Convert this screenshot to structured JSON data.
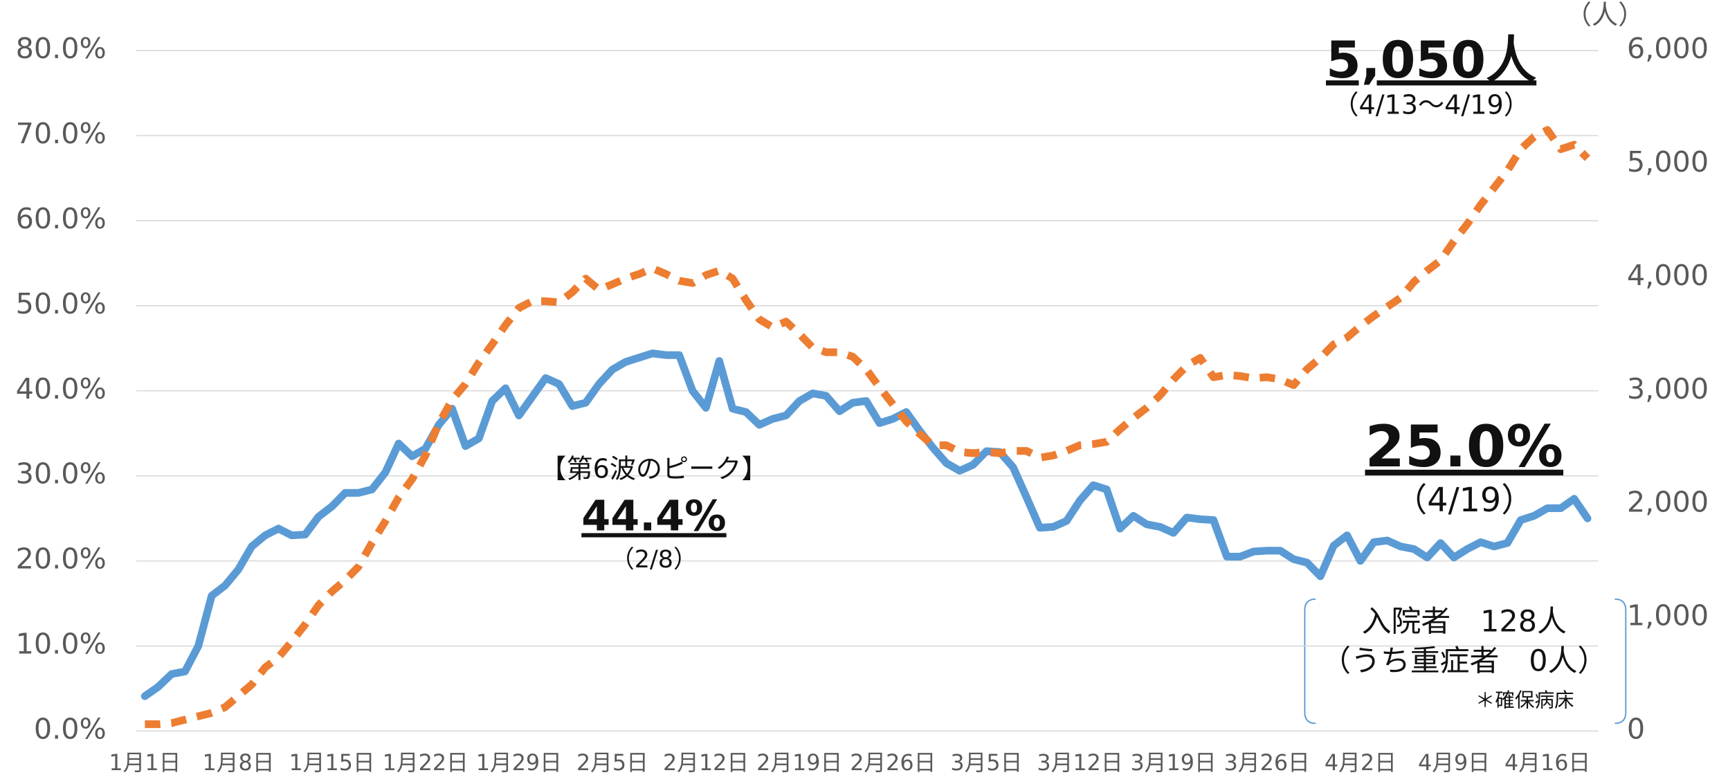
{
  "chart_data": {
    "type": "line",
    "categories": [
      "1月1日",
      null,
      null,
      null,
      null,
      null,
      null,
      "1月8日",
      null,
      null,
      null,
      null,
      null,
      null,
      "1月15日",
      null,
      null,
      null,
      null,
      null,
      null,
      "1月22日",
      null,
      null,
      null,
      null,
      null,
      null,
      "1月29日",
      null,
      null,
      null,
      null,
      null,
      null,
      "2月5日",
      null,
      null,
      null,
      null,
      null,
      null,
      "2月12日",
      null,
      null,
      null,
      null,
      null,
      null,
      "2月19日",
      null,
      null,
      null,
      null,
      null,
      null,
      "2月26日",
      null,
      null,
      null,
      null,
      null,
      null,
      "3月5日",
      null,
      null,
      null,
      null,
      null,
      null,
      "3月12日",
      null,
      null,
      null,
      null,
      null,
      null,
      "3月19日",
      null,
      null,
      null,
      null,
      null,
      null,
      "3月26日",
      null,
      null,
      null,
      null,
      null,
      null,
      "4月2日",
      null,
      null,
      null,
      null,
      null,
      null,
      "4月9日",
      null,
      null,
      null,
      null,
      null,
      null,
      "4月16日",
      null,
      null,
      null
    ],
    "series": [
      {
        "color": "#5B9BD5",
        "values": [
          4.1,
          5.2,
          6.7,
          7.0,
          10.0,
          15.9,
          17.1,
          19.0,
          21.7,
          23.0,
          23.8,
          23.0,
          23.1,
          25.2,
          26.4,
          28.0,
          28.0,
          28.4,
          30.4,
          33.8,
          32.3,
          33.2,
          36.0,
          37.9,
          33.5,
          34.4,
          38.8,
          40.3,
          37.1,
          39.3,
          41.5,
          40.8,
          38.2,
          38.6,
          40.8,
          42.5,
          43.4,
          43.9,
          44.4,
          44.2,
          44.2,
          40.0,
          38.0,
          43.5,
          37.9,
          37.5,
          36.0,
          36.7,
          37.1,
          38.8,
          39.7,
          39.4,
          37.6,
          38.6,
          38.8,
          36.2,
          36.7,
          37.5,
          35.3,
          33.3,
          31.5,
          30.6,
          31.3,
          32.9,
          32.8,
          31.0,
          27.5,
          23.9,
          24.0,
          24.7,
          27.1,
          28.9,
          28.4,
          23.8,
          25.3,
          24.3,
          24.0,
          23.3,
          25.1,
          24.9,
          24.8,
          20.5,
          20.5,
          21.1,
          21.2,
          21.2,
          20.2,
          19.8,
          18.2,
          21.8,
          23.0,
          20.0,
          22.2,
          22.4,
          21.7,
          21.4,
          20.4,
          22.1,
          20.4,
          21.4,
          22.2,
          21.7,
          22.1,
          24.8,
          25.3,
          26.2,
          26.2,
          27.3,
          25.0
        ]
      },
      {
        "color": "#ED7D31",
        "axis": "y2",
        "dashed": true,
        "values": [
          60,
          60,
          70,
          100,
          130,
          160,
          210,
          310,
          410,
          560,
          650,
          790,
          940,
          1110,
          1230,
          1330,
          1450,
          1660,
          1850,
          2060,
          2220,
          2430,
          2710,
          2920,
          3060,
          3250,
          3410,
          3580,
          3730,
          3790,
          3790,
          3780,
          3870,
          3990,
          3890,
          3940,
          3990,
          4030,
          4080,
          4030,
          3970,
          3950,
          4020,
          4060,
          3990,
          3800,
          3630,
          3560,
          3610,
          3500,
          3380,
          3340,
          3340,
          3300,
          3190,
          3030,
          2880,
          2730,
          2620,
          2520,
          2520,
          2460,
          2450,
          2460,
          2450,
          2470,
          2470,
          2410,
          2430,
          2470,
          2520,
          2530,
          2550,
          2660,
          2760,
          2850,
          2960,
          3100,
          3220,
          3290,
          3120,
          3140,
          3130,
          3110,
          3120,
          3100,
          3050,
          3190,
          3290,
          3410,
          3470,
          3570,
          3660,
          3740,
          3820,
          3960,
          4060,
          4150,
          4320,
          4470,
          4640,
          4790,
          4940,
          5130,
          5240,
          5300,
          5130,
          5170,
          5050
        ]
      }
    ],
    "ylim": [
      0,
      80
    ],
    "yticks": [
      {
        "value": 0,
        "label": "0.0%"
      },
      {
        "value": 10,
        "label": "10.0%"
      },
      {
        "value": 20,
        "label": "20.0%"
      },
      {
        "value": 30,
        "label": "30.0%"
      },
      {
        "value": 40,
        "label": "40.0%"
      },
      {
        "value": 50,
        "label": "50.0%"
      },
      {
        "value": 60,
        "label": "60.0%"
      },
      {
        "value": 70,
        "label": "70.0%"
      },
      {
        "value": 80,
        "label": "80.0%"
      }
    ],
    "y2lim": [
      0,
      6000
    ],
    "y2ticks": [
      0,
      {
        "value": 1000,
        "label": "1,000"
      },
      {
        "value": 2000,
        "label": "2,000"
      },
      {
        "value": 3000,
        "label": "3,000"
      },
      {
        "value": 4000,
        "label": "4,000"
      },
      {
        "value": 5000,
        "label": "5,000"
      },
      {
        "value": 6000,
        "label": "6,000"
      }
    ],
    "y2_unit": "（人）",
    "grid": true,
    "annotations": [
      "5,050人",
      "（4/13～4/19）",
      "25.0%",
      "（4/19）",
      "【第6波のピーク】",
      "44.4%",
      "（2/8）",
      "入院者　128人",
      "（うち重症者　0人）",
      "＊確保病床"
    ]
  }
}
